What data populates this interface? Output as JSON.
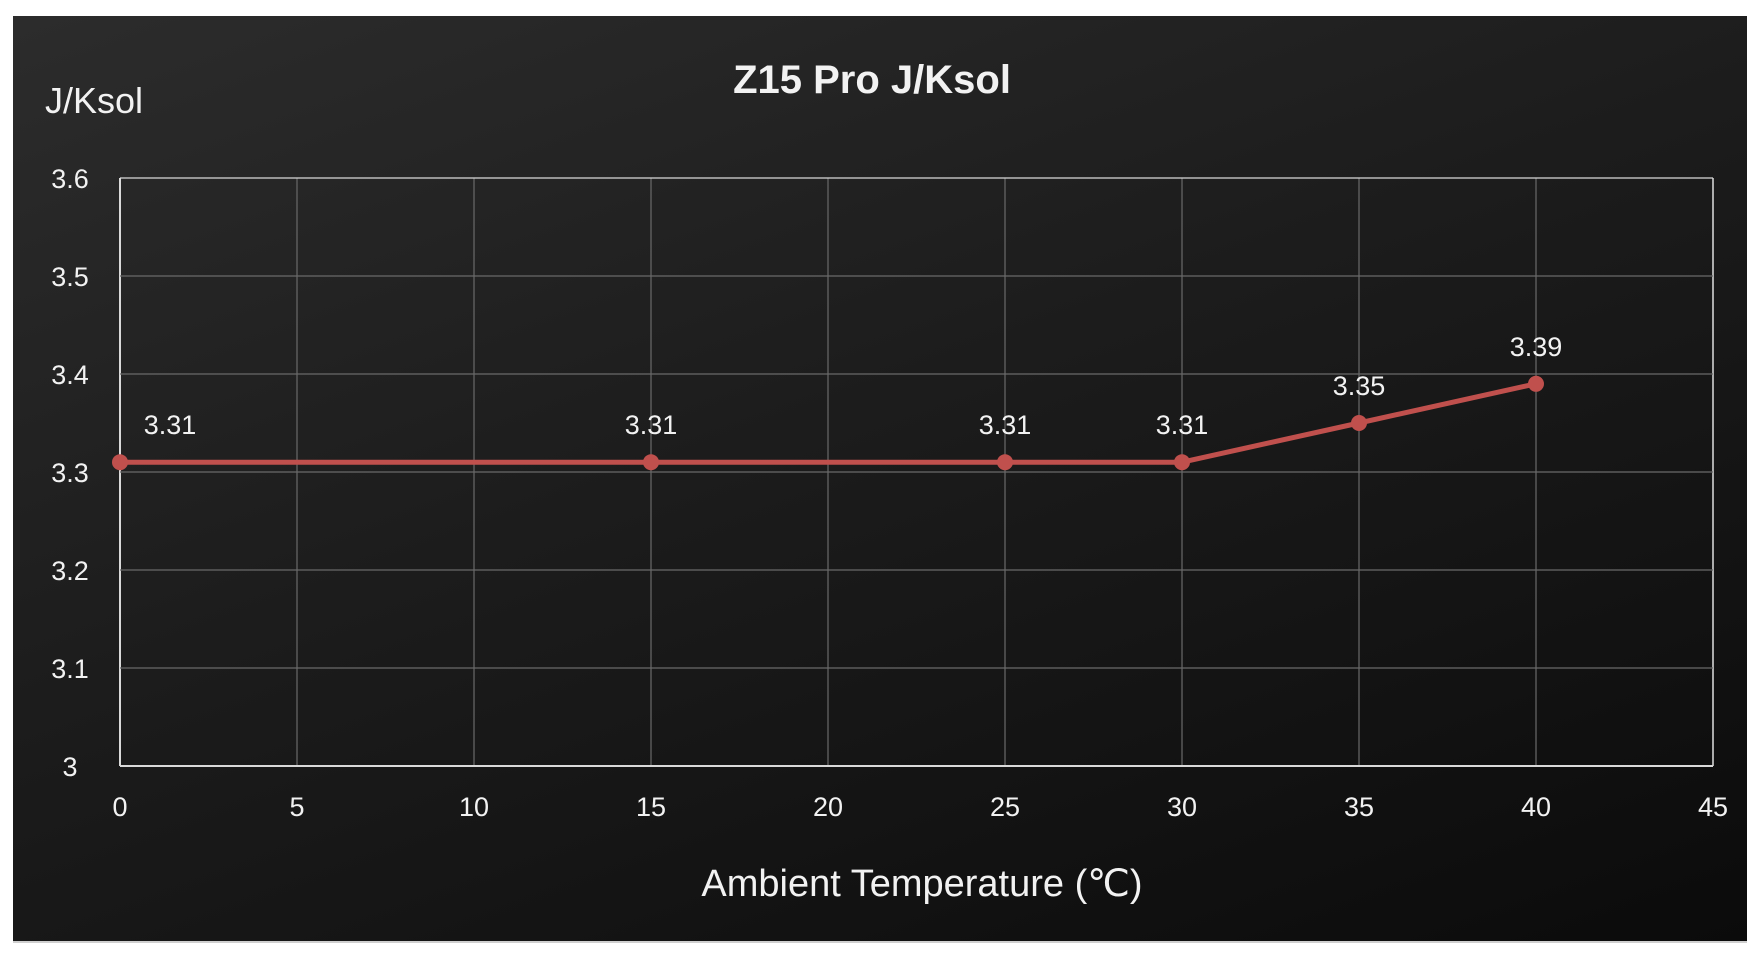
{
  "chart_data": {
    "type": "line",
    "title": "Z15 Pro J/Ksol",
    "xlabel": "Ambient Temperature (℃)",
    "ylabel": "J/Ksol",
    "xlim": [
      0,
      45
    ],
    "ylim": [
      3,
      3.6
    ],
    "x_ticks": [
      "0",
      "5",
      "10",
      "15",
      "20",
      "25",
      "30",
      "35",
      "40",
      "45"
    ],
    "y_ticks": [
      "3",
      "3.1",
      "3.2",
      "3.3",
      "3.4",
      "3.5",
      "3.6"
    ],
    "grid": true,
    "series": [
      {
        "x": [
          0,
          15,
          25,
          30,
          35,
          40
        ],
        "y": [
          3.31,
          3.31,
          3.31,
          3.31,
          3.35,
          3.39
        ],
        "labels": [
          "3.31",
          "3.31",
          "3.31",
          "3.31",
          "3.35",
          "3.39"
        ],
        "color": "#c0504d"
      }
    ],
    "background": "#1c1c1c"
  }
}
